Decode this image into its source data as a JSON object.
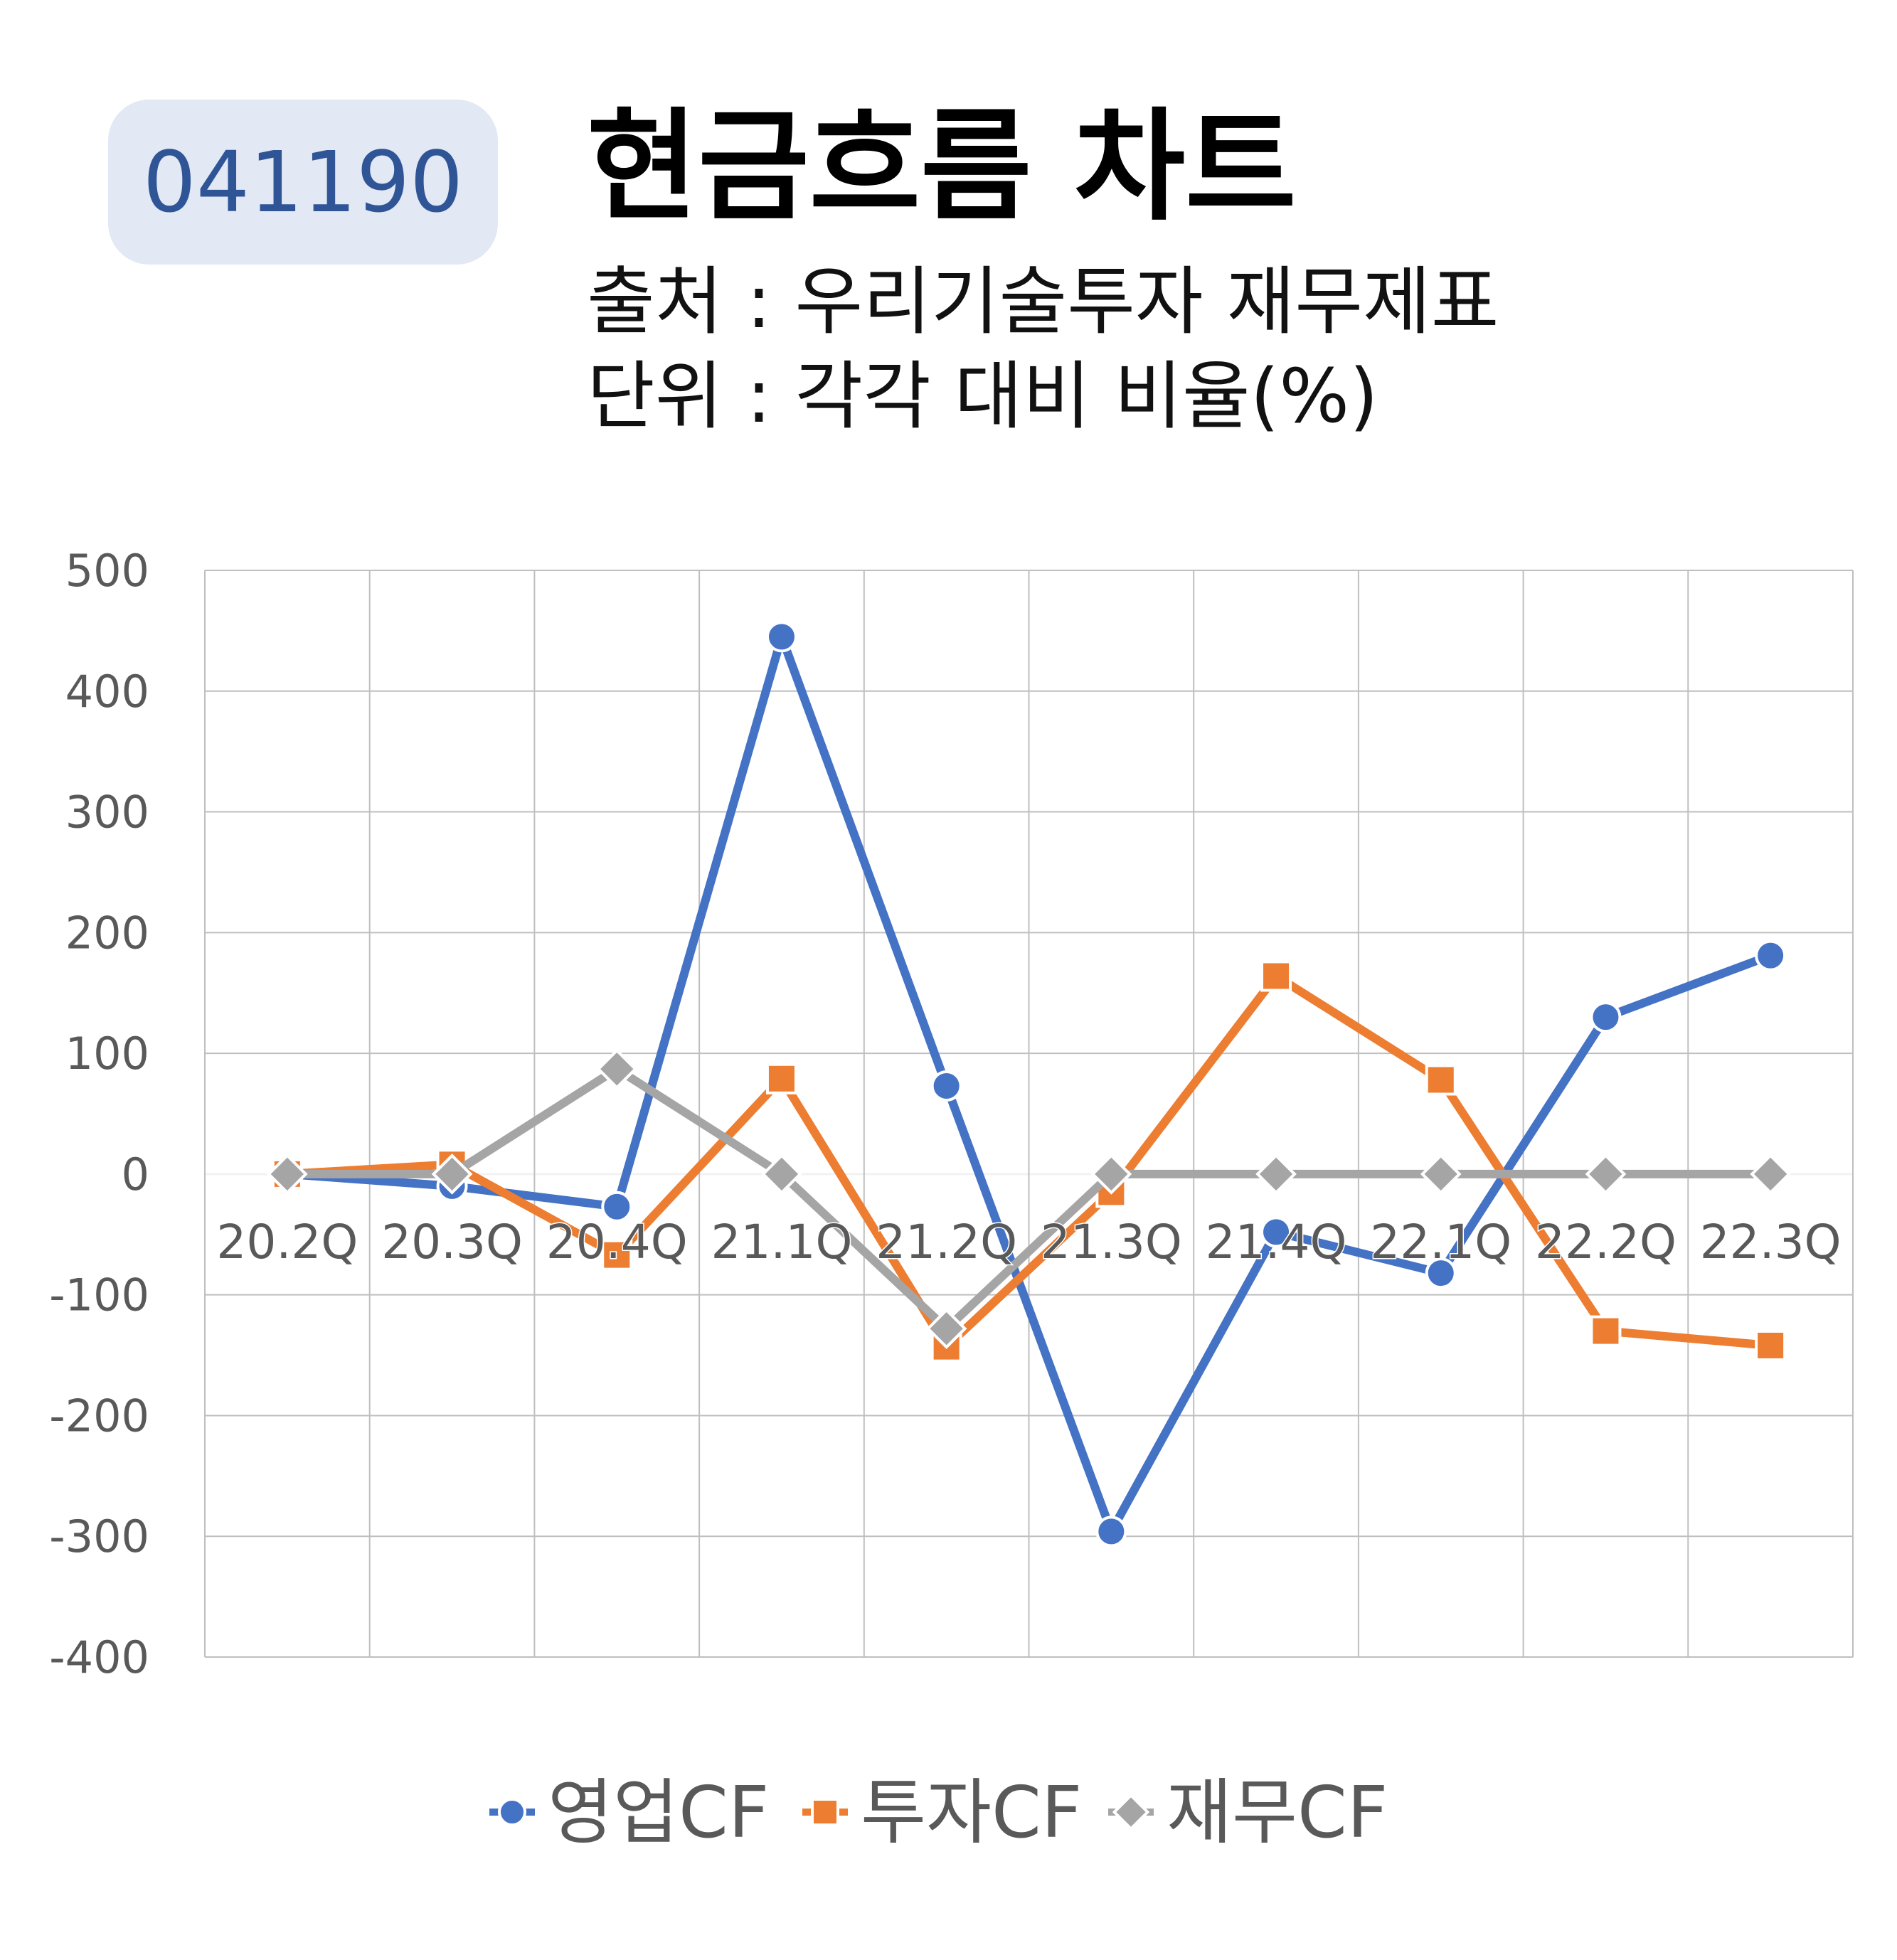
{
  "header": {
    "code": "041190",
    "title": "현금흐름 차트",
    "source": "출처 : 우리기술투자 재무제표",
    "unit": "단위 : 각각 대비 비율(%)"
  },
  "chart_data": {
    "type": "line",
    "categories": [
      "20.2Q",
      "20.3Q",
      "20.4Q",
      "21.1Q",
      "21.2Q",
      "21.3Q",
      "21.4Q",
      "22.1Q",
      "22.2Q",
      "22.3Q"
    ],
    "ylim": [
      -400,
      500
    ],
    "yticks": [
      500,
      400,
      300,
      200,
      100,
      0,
      -100,
      -200,
      -300,
      -400
    ],
    "grid": true,
    "legend_position": "bottom",
    "series": [
      {
        "name": "영업CF",
        "color": "#4472c4",
        "marker": "circle",
        "values": [
          0,
          -10,
          -27,
          445,
          73,
          -296,
          -48,
          -82,
          130,
          181
        ]
      },
      {
        "name": "투자CF",
        "color": "#ed7d31",
        "marker": "square",
        "values": [
          0,
          8,
          -67,
          79,
          -143,
          -15,
          164,
          78,
          -130,
          -142
        ]
      },
      {
        "name": "재무CF",
        "color": "#a5a5a5",
        "marker": "diamond",
        "values": [
          0,
          0,
          87,
          0,
          -128,
          0,
          0,
          0,
          0,
          0
        ]
      }
    ]
  }
}
